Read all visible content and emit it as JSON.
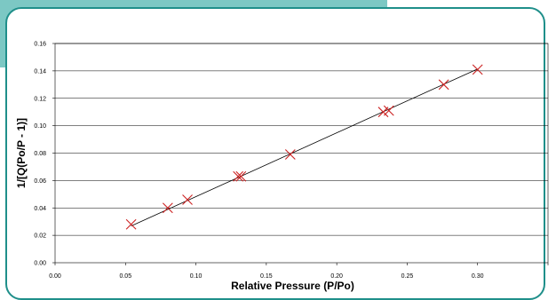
{
  "chart_data": {
    "type": "scatter",
    "title": "",
    "xlabel": "Relative Pressure (P/Po)",
    "ylabel": "1/[Q(Po/P - 1)]",
    "xlim": [
      0.0,
      0.35
    ],
    "ylim": [
      0.0,
      0.16
    ],
    "x_ticks": [
      "0.00",
      "0.05",
      "0.10",
      "0.15",
      "0.20",
      "0.25",
      "0.30"
    ],
    "y_ticks": [
      "0.00",
      "0.02",
      "0.04",
      "0.06",
      "0.08",
      "0.10",
      "0.12",
      "0.14",
      "0.16"
    ],
    "grid": "horizontal",
    "legend": "none",
    "marker": "x",
    "marker_color": "#cc2222",
    "line_color": "#000000",
    "points": [
      {
        "x": 0.054,
        "y": 0.028
      },
      {
        "x": 0.08,
        "y": 0.04
      },
      {
        "x": 0.094,
        "y": 0.046
      },
      {
        "x": 0.13,
        "y": 0.063
      },
      {
        "x": 0.132,
        "y": 0.063
      },
      {
        "x": 0.167,
        "y": 0.079
      },
      {
        "x": 0.233,
        "y": 0.11
      },
      {
        "x": 0.237,
        "y": 0.111
      },
      {
        "x": 0.276,
        "y": 0.13
      },
      {
        "x": 0.3,
        "y": 0.141
      }
    ],
    "trendline": {
      "x": [
        0.054,
        0.3
      ],
      "y": [
        0.0268,
        0.1414
      ]
    }
  }
}
